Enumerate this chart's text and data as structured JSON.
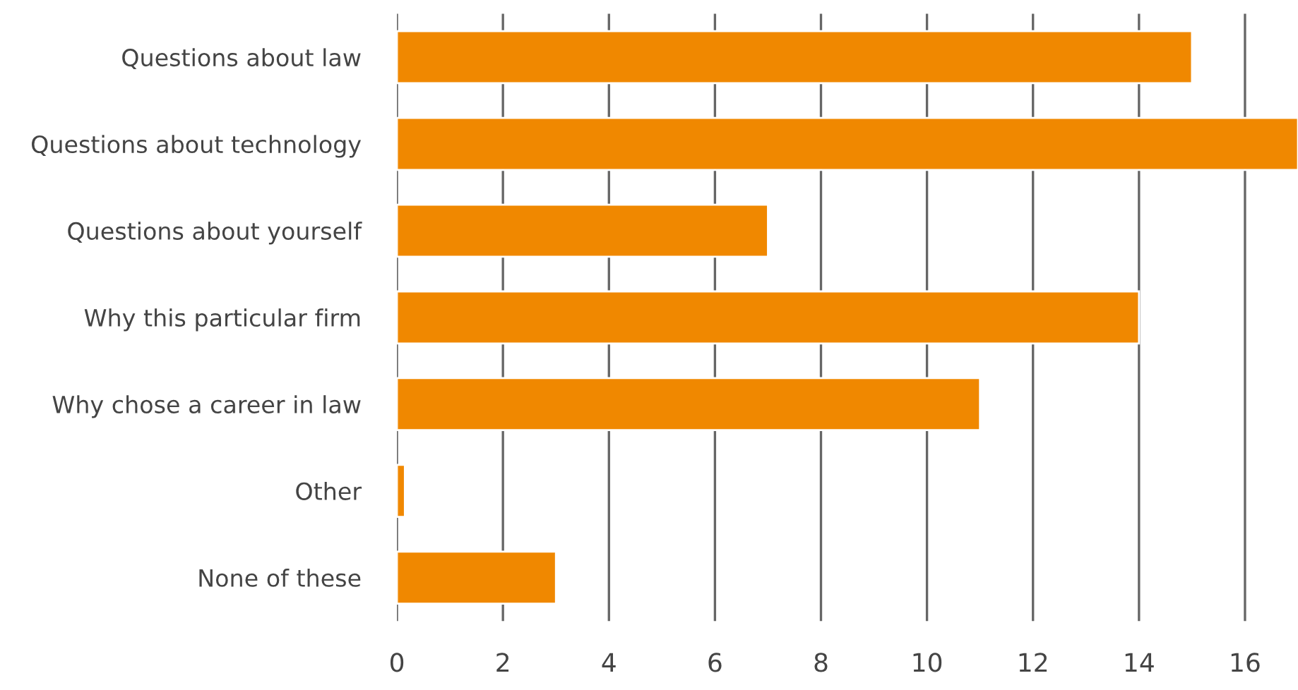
{
  "chart_data": {
    "type": "bar",
    "orientation": "horizontal",
    "categories": [
      "Questions about law",
      "Questions about technology",
      "Questions about yourself",
      "Why this particular firm",
      "Why chose a career in law",
      "Other",
      "None of these"
    ],
    "values": [
      15,
      17,
      7,
      14,
      11,
      0.15,
      3
    ],
    "color": "#f08800",
    "xlim": [
      0,
      17
    ],
    "xticks": [
      0,
      2,
      4,
      6,
      8,
      10,
      12,
      14,
      16
    ],
    "grid": "x",
    "legend": false
  }
}
